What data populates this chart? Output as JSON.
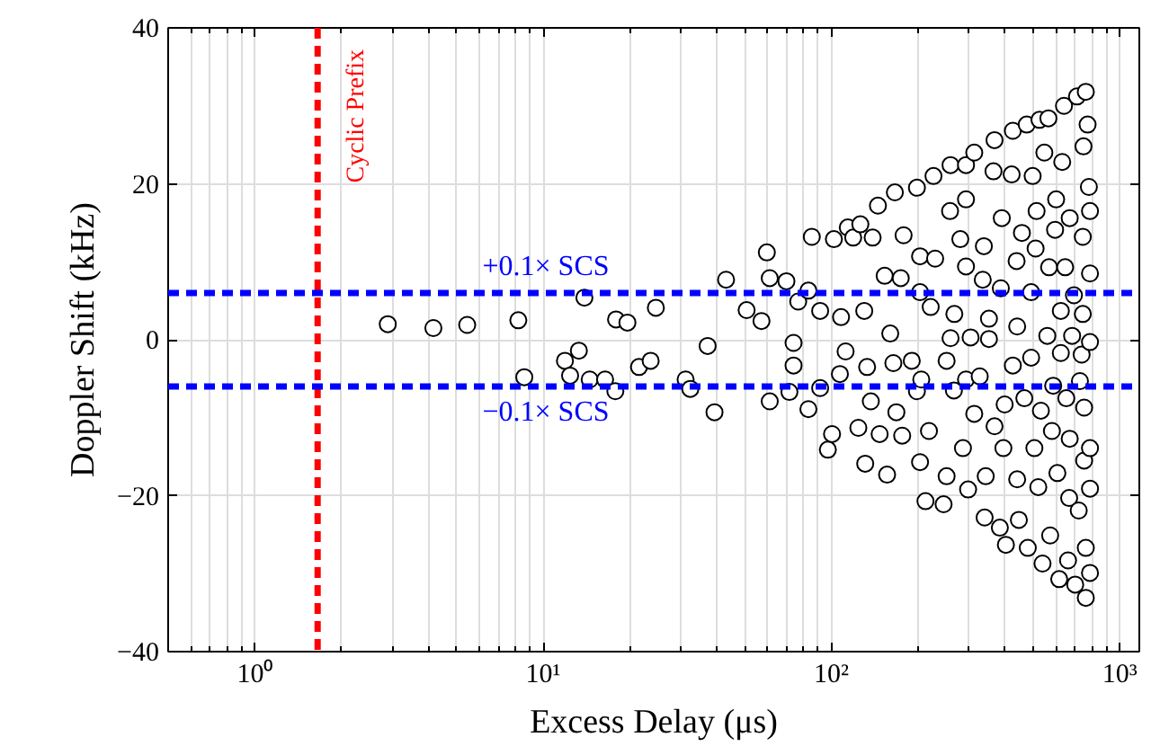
{
  "chart_data": {
    "type": "scatter",
    "xlabel": "Excess Delay (μs)",
    "ylabel": "Doppler Shift (kHz)",
    "log": "x",
    "grid": true,
    "marker": "circle",
    "xlim": [
      0.5,
      1170
    ],
    "ylim": [
      -40,
      40
    ],
    "xticks": [
      {
        "value": 1,
        "label": "10⁰"
      },
      {
        "value": 10,
        "label": "10¹"
      },
      {
        "value": 100,
        "label": "10²"
      },
      {
        "value": 1000,
        "label": "10³"
      }
    ],
    "yticks": [
      -40,
      -20,
      0,
      20,
      40
    ],
    "ref_lines": [
      {
        "axis": "x",
        "value": 1.65,
        "label": "Cyclic Prefix",
        "color": "#ff0000",
        "line_style": "dashed"
      },
      {
        "axis": "y",
        "value": 6,
        "label": "+0.1× SCS",
        "color": "#0000ff",
        "line_style": "dashed"
      },
      {
        "axis": "y",
        "value": -6,
        "label": "−0.1× SCS",
        "color": "#0000ff",
        "line_style": "dashed"
      }
    ],
    "series": [
      {
        "color": "#000000",
        "x": [
          2.89,
          4.16,
          5.45,
          8.2,
          8.6,
          13.9,
          11.9,
          13.3,
          12.4,
          14.5,
          16.4,
          17.8,
          17.9,
          19.6,
          24.6,
          21.5,
          23.6,
          31.2,
          32.4,
          37.2,
          39.3,
          43.1,
          50.8,
          57.2,
          59.7,
          61.1,
          61.1,
          69.8,
          73.9,
          73.9,
          71.5,
          76.7,
          83.2,
          83.2,
          85.5,
          91.4,
          91.4,
          102,
          97.2,
          100.5,
          108,
          112,
          107,
          114,
          119,
          126,
          130,
          124,
          131,
          133,
          137,
          139,
          145,
          147,
          153,
          156,
          160,
          164,
          168,
          166,
          174,
          176,
          178,
          190,
          198,
          198,
          203,
          203,
          203,
          205,
          212,
          218,
          221,
          229,
          226,
          245,
          251,
          251,
          258,
          259,
          259,
          266,
          267,
          280,
          286,
          293,
          293,
          293,
          293,
          298,
          304,
          313,
          313,
          327,
          335,
          338,
          340,
          343,
          352,
          352,
          365,
          368,
          368,
          384,
          387,
          390,
          395,
          399,
          403,
          422,
          426,
          426,
          439,
          441,
          441,
          447,
          458,
          467,
          476,
          480,
          493,
          493,
          499,
          506,
          511,
          515,
          522,
          527,
          533,
          540,
          548,
          561,
          566,
          569,
          574,
          582,
          588,
          597,
          602,
          608,
          617,
          625,
          625,
          632,
          641,
          647,
          653,
          662,
          668,
          671,
          671,
          684,
          694,
          701,
          711,
          721,
          728,
          738,
          745,
          745,
          749,
          753,
          753,
          763,
          763,
          763,
          774,
          782,
          789,
          789,
          789,
          789,
          789,
          789
        ],
        "values": [
          2.0,
          1.5,
          1.9,
          2.5,
          -4.8,
          5.4,
          -2.7,
          -1.4,
          -4.6,
          -5.1,
          -5.1,
          -6.6,
          2.6,
          2.2,
          4.1,
          -3.5,
          -2.7,
          -5.1,
          -6.3,
          -0.8,
          -9.3,
          7.7,
          3.8,
          2.4,
          11.2,
          7.9,
          -7.9,
          7.5,
          -0.4,
          -3.3,
          -6.7,
          4.9,
          6.3,
          -8.9,
          13.2,
          3.7,
          -6.2,
          12.9,
          -14.1,
          -12.1,
          2.9,
          -1.5,
          -4.4,
          14.4,
          13.1,
          14.8,
          3.7,
          -11.3,
          -15.9,
          -3.5,
          -7.9,
          13.1,
          17.2,
          -12.1,
          8.2,
          -17.3,
          0.8,
          -3.0,
          -9.3,
          18.9,
          7.9,
          -12.3,
          13.4,
          -2.7,
          19.5,
          -6.6,
          10.7,
          6.1,
          -15.7,
          -5.1,
          -20.7,
          -11.7,
          4.2,
          10.4,
          21.0,
          -21.1,
          -2.7,
          -17.5,
          16.5,
          22.4,
          0.2,
          -6.5,
          3.3,
          12.9,
          -13.9,
          22.4,
          9.4,
          18.0,
          -5.1,
          -19.2,
          0.3,
          -9.5,
          24.0,
          -4.7,
          7.7,
          12.0,
          -22.8,
          -17.5,
          2.7,
          0.1,
          21.6,
          25.6,
          -11.1,
          -24.1,
          6.6,
          15.6,
          -13.9,
          -8.3,
          -26.3,
          21.2,
          26.8,
          -3.3,
          10.1,
          1.7,
          -17.9,
          -23.1,
          13.7,
          -7.5,
          27.6,
          -26.7,
          6.1,
          -2.3,
          21.0,
          -13.9,
          11.7,
          16.5,
          -18.9,
          28.2,
          -9.1,
          -28.7,
          24.0,
          0.5,
          28.4,
          9.3,
          -25.1,
          -11.7,
          -5.9,
          14.1,
          18.0,
          -17.1,
          -30.7,
          3.7,
          -1.7,
          22.8,
          30.0,
          9.3,
          -7.5,
          -28.3,
          -20.3,
          15.6,
          -12.7,
          0.5,
          5.7,
          -31.4,
          31.2,
          -21.9,
          -5.3,
          -1.9,
          13.2,
          3.3,
          24.8,
          -8.7,
          -15.5,
          31.8,
          -26.7,
          -33.1,
          27.6,
          19.6,
          -13.9,
          8.5,
          16.5,
          -0.3,
          -19.1,
          -29.9
        ]
      }
    ]
  }
}
